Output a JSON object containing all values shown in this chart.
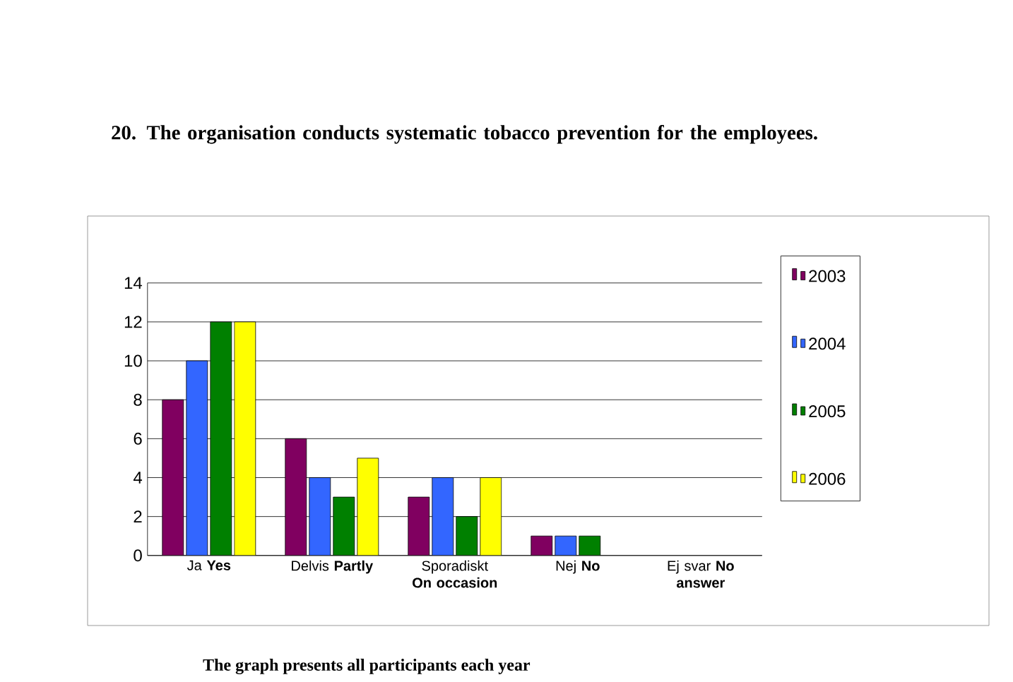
{
  "chart_data": {
    "type": "bar",
    "title": "20. The organisation conducts systematic tobacco prevention for the employees.",
    "categories": [
      "Ja **Yes**",
      "Delvis **Partly**",
      "Sporadiskt **On occasion**",
      "Nej **No**",
      "Ej svar **No answer**"
    ],
    "series": [
      {
        "name": "2003",
        "color": "#800060",
        "values": [
          8,
          6,
          3,
          1,
          null
        ]
      },
      {
        "name": "2004",
        "color": "#3366ff",
        "values": [
          10,
          4,
          4,
          1,
          null
        ]
      },
      {
        "name": "2005",
        "color": "#008000",
        "values": [
          12,
          3,
          2,
          1,
          null
        ]
      },
      {
        "name": "2006",
        "color": "#ffff00",
        "values": [
          12,
          5,
          4,
          null,
          null
        ]
      }
    ],
    "ylim": [
      0,
      14
    ],
    "yticks": [
      0,
      2,
      4,
      6,
      8,
      10,
      12,
      14
    ],
    "grid": "y",
    "legend": "right",
    "annotations": [
      "The graph presents all participants each  year"
    ]
  }
}
